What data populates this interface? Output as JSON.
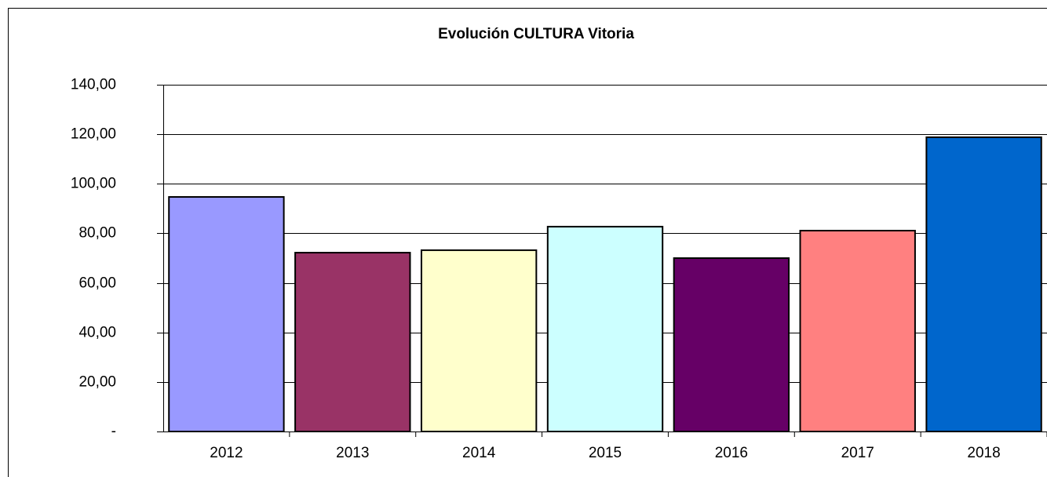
{
  "chart_data": {
    "type": "bar",
    "title": "Evolución CULTURA Vitoria",
    "categories": [
      "2012",
      "2013",
      "2014",
      "2015",
      "2016",
      "2017",
      "2018"
    ],
    "values": [
      94.7,
      72.2,
      73.2,
      82.7,
      70.0,
      81.1,
      118.8
    ],
    "colors": [
      "#9999ff",
      "#993366",
      "#ffffcc",
      "#ccffff",
      "#660066",
      "#ff8080",
      "#0066cc"
    ],
    "ylim": [
      0,
      140
    ],
    "yticks": [
      {
        "value": 0,
        "label": "-"
      },
      {
        "value": 20,
        "label": "20,00"
      },
      {
        "value": 40,
        "label": "40,00"
      },
      {
        "value": 60,
        "label": "60,00"
      },
      {
        "value": 80,
        "label": "80,00"
      },
      {
        "value": 100,
        "label": "100,00"
      },
      {
        "value": 120,
        "label": "120,00"
      },
      {
        "value": 140,
        "label": "140,00"
      }
    ],
    "grid": true
  }
}
